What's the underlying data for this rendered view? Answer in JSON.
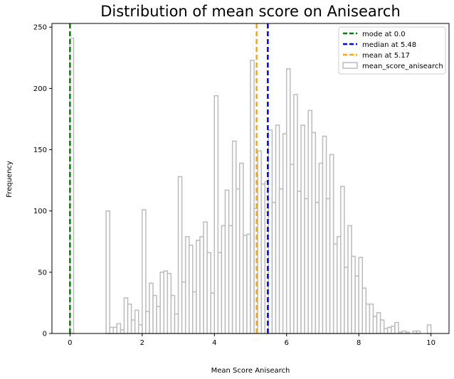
{
  "chart_data": {
    "type": "histogram",
    "title": "Distribution of mean score on Anisearch",
    "xlabel": "Mean Score Anisearch",
    "ylabel": "Frequency",
    "xlim": [
      -0.5,
      10.5
    ],
    "ylim": [
      0,
      253
    ],
    "x_ticks": [
      "0",
      "2",
      "4",
      "6",
      "8",
      "10"
    ],
    "y_ticks": [
      "0",
      "50",
      "100",
      "150",
      "200",
      "250"
    ],
    "bin_width": 0.1,
    "legend_position": "top-right",
    "grid": false,
    "series": [
      {
        "name": "mean_score_anisearch",
        "color": "#bbbbbb",
        "bin_starts": [
          0.0,
          1.0,
          1.1,
          1.2,
          1.3,
          1.4,
          1.5,
          1.6,
          1.7,
          1.8,
          1.9,
          2.0,
          2.1,
          2.2,
          2.3,
          2.4,
          2.5,
          2.6,
          2.7,
          2.8,
          2.9,
          3.0,
          3.1,
          3.2,
          3.3,
          3.4,
          3.5,
          3.6,
          3.7,
          3.8,
          3.9,
          4.0,
          4.1,
          4.2,
          4.3,
          4.4,
          4.5,
          4.6,
          4.7,
          4.8,
          4.9,
          5.0,
          5.1,
          5.2,
          5.3,
          5.4,
          5.5,
          5.6,
          5.7,
          5.8,
          5.9,
          6.0,
          6.1,
          6.2,
          6.3,
          6.4,
          6.5,
          6.6,
          6.7,
          6.8,
          6.9,
          7.0,
          7.1,
          7.2,
          7.3,
          7.4,
          7.5,
          7.6,
          7.7,
          7.8,
          7.9,
          8.0,
          8.1,
          8.2,
          8.3,
          8.4,
          8.5,
          8.6,
          8.7,
          8.8,
          8.9,
          9.0,
          9.1,
          9.2,
          9.3,
          9.4,
          9.5,
          9.6,
          9.7,
          9.8,
          9.9
        ],
        "values": [
          241,
          100,
          5,
          5,
          8,
          3,
          29,
          24,
          11,
          19,
          7,
          101,
          18,
          41,
          31,
          22,
          50,
          51,
          49,
          31,
          16,
          128,
          42,
          79,
          72,
          34,
          76,
          79,
          91,
          66,
          33,
          194,
          66,
          88,
          117,
          88,
          157,
          118,
          139,
          80,
          81,
          223,
          102,
          149,
          122,
          124,
          166,
          107,
          170,
          118,
          163,
          216,
          138,
          195,
          116,
          170,
          110,
          182,
          164,
          107,
          139,
          161,
          110,
          146,
          73,
          79,
          120,
          54,
          88,
          63,
          47,
          62,
          37,
          24,
          24,
          14,
          17,
          11,
          4,
          5,
          6,
          9,
          1,
          2,
          1,
          0,
          2,
          2,
          0,
          0,
          7
        ]
      }
    ],
    "reference_lines": [
      {
        "label": "mode at 0.0",
        "x": 0.0,
        "color": "#008000"
      },
      {
        "label": "median at 5.48",
        "x": 5.48,
        "color": "#0000ff"
      },
      {
        "label": "mean at 5.17",
        "x": 5.17,
        "color": "#ffa500"
      }
    ]
  }
}
